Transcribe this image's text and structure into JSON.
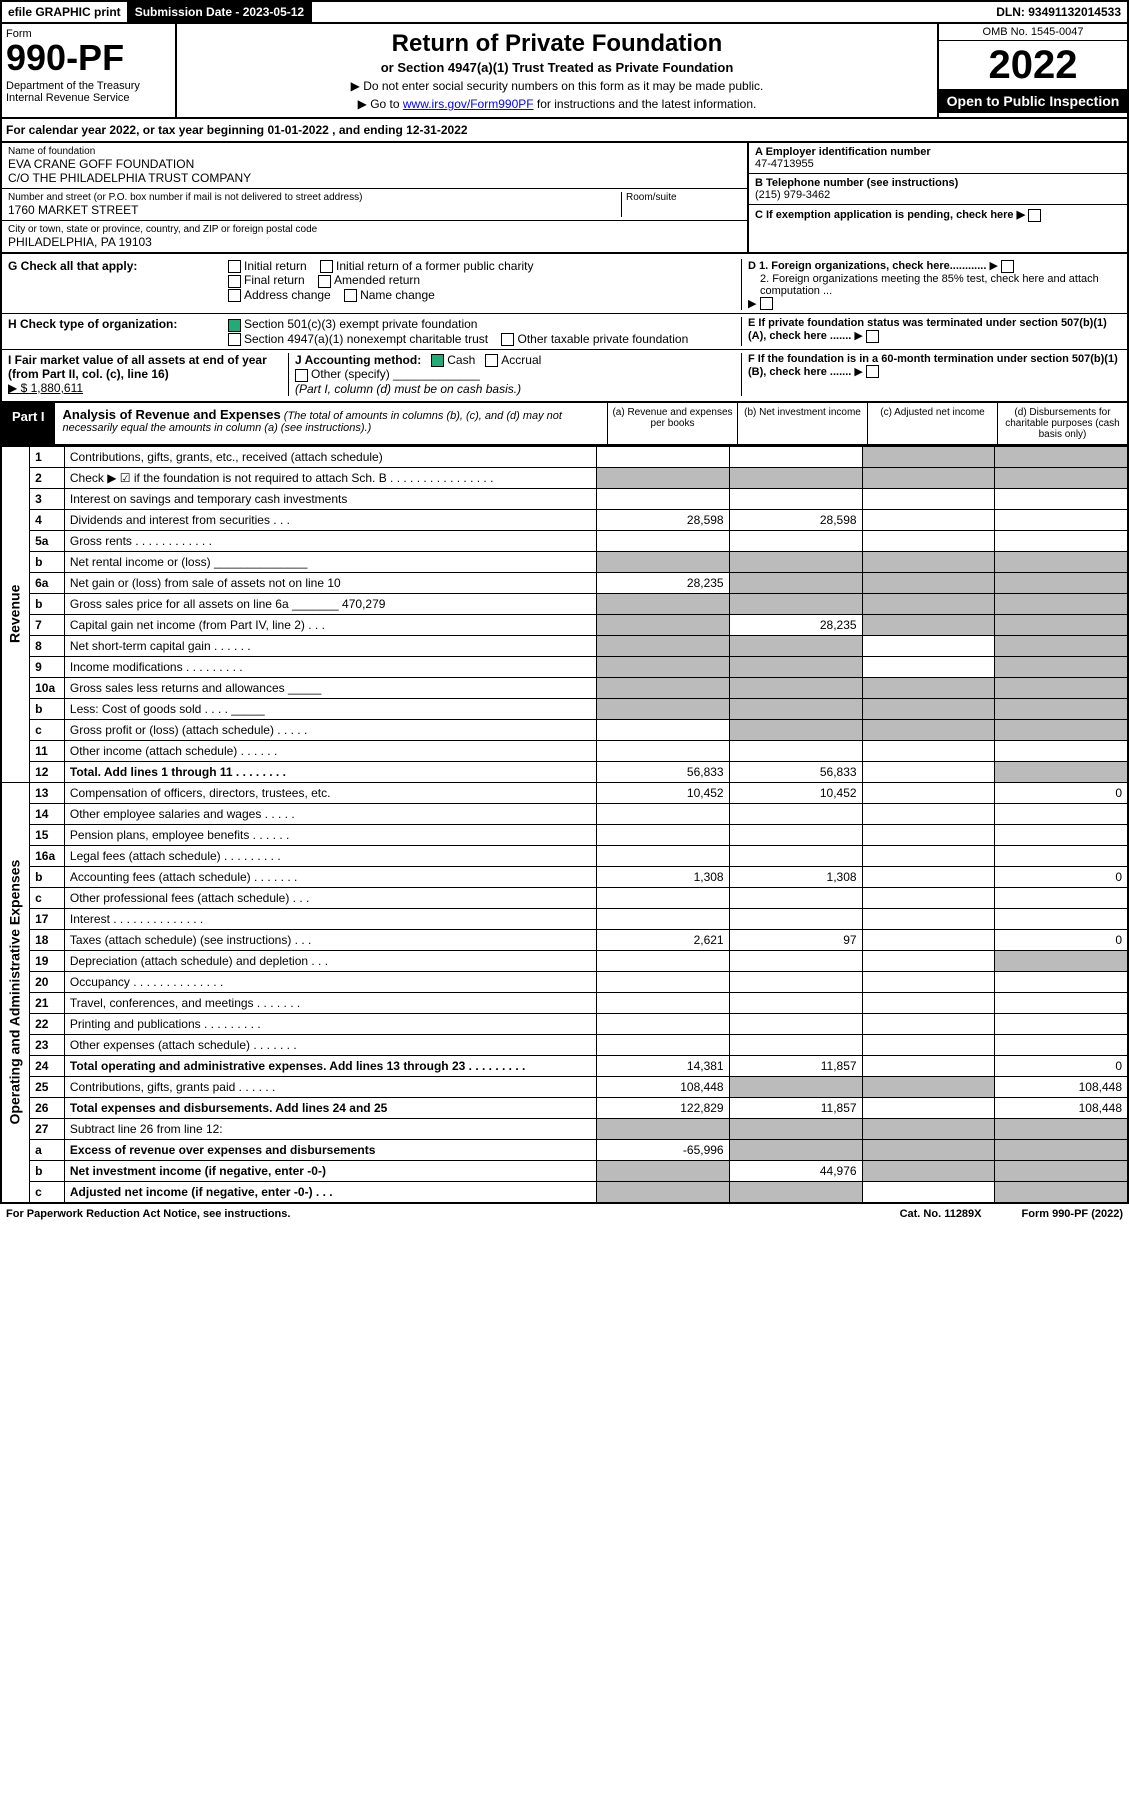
{
  "topbar": {
    "efile": "efile GRAPHIC print",
    "sub_label": "Submission Date - 2023-05-12",
    "dln": "DLN: 93491132014533"
  },
  "header": {
    "form_label": "Form",
    "form_num": "990-PF",
    "dept": "Department of the Treasury\nInternal Revenue Service",
    "title": "Return of Private Foundation",
    "sub": "or Section 4947(a)(1) Trust Treated as Private Foundation",
    "note1": "▶ Do not enter social security numbers on this form as it may be made public.",
    "note2": "▶ Go to www.irs.gov/Form990PF for instructions and the latest information.",
    "omb": "OMB No. 1545-0047",
    "year": "2022",
    "open": "Open to Public Inspection"
  },
  "cal_year": "For calendar year 2022, or tax year beginning 01-01-2022          , and ending 12-31-2022",
  "info": {
    "name_label": "Name of foundation",
    "name": "EVA CRANE GOFF FOUNDATION\nC/O THE PHILADELPHIA TRUST COMPANY",
    "addr_label": "Number and street (or P.O. box number if mail is not delivered to street address)",
    "addr": "1760 MARKET STREET",
    "room_label": "Room/suite",
    "city_label": "City or town, state or province, country, and ZIP or foreign postal code",
    "city": "PHILADELPHIA, PA  19103",
    "a_label": "A Employer identification number",
    "a": "47-4713955",
    "b_label": "B Telephone number (see instructions)",
    "b": "(215) 979-3462",
    "c_label": "C If exemption application is pending, check here",
    "c_arrow": "▶",
    "d1": "D 1. Foreign organizations, check here............",
    "d2": "2. Foreign organizations meeting the 85% test, check here and attach computation ...",
    "e": "E  If private foundation status was terminated under section 507(b)(1)(A), check here .......",
    "f": "F  If the foundation is in a 60-month termination under section 507(b)(1)(B), check here .......",
    "g_label": "G Check all that apply:",
    "g_opts": [
      "Initial return",
      "Initial return of a former public charity",
      "Final return",
      "Amended return",
      "Address change",
      "Name change"
    ],
    "h_label": "H Check type of organization:",
    "h1": "Section 501(c)(3) exempt private foundation",
    "h2": "Section 4947(a)(1) nonexempt charitable trust",
    "h3": "Other taxable private foundation",
    "i_label": "I Fair market value of all assets at end of year (from Part II, col. (c), line 16)",
    "i_val": "▶ $  1,880,611",
    "j_label": "J Accounting method:",
    "j_opts": [
      "Cash",
      "Accrual",
      "Other (specify)"
    ],
    "j_note": "(Part I, column (d) must be on cash basis.)"
  },
  "part1": {
    "label": "Part I",
    "title": "Analysis of Revenue and Expenses",
    "title_note": "(The total of amounts in columns (b), (c), and (d) may not necessarily equal the amounts in column (a) (see instructions).)",
    "cols": [
      "(a)  Revenue and expenses per books",
      "(b)  Net investment income",
      "(c)  Adjusted net income",
      "(d)  Disbursements for charitable purposes (cash basis only)"
    ]
  },
  "sections": [
    {
      "rot": "Revenue",
      "rows": [
        {
          "n": "1",
          "d": "Contributions, gifts, grants, etc., received (attach schedule)",
          "g": [
            0,
            0,
            1,
            1
          ]
        },
        {
          "n": "2",
          "d": "Check ▶ ☑ if the foundation is not required to attach Sch. B   .  .  .  .  .  .  .  .  .  .  .  .  .  .  .  .",
          "g": [
            1,
            1,
            1,
            1
          ]
        },
        {
          "n": "3",
          "d": "Interest on savings and temporary cash investments"
        },
        {
          "n": "4",
          "d": "Dividends and interest from securities   .   .   .",
          "a": "28,598",
          "b": "28,598"
        },
        {
          "n": "5a",
          "d": "Gross rents   .  .  .  .  .  .  .  .  .  .  .  ."
        },
        {
          "n": "b",
          "d": "Net rental income or (loss)  ______________",
          "g": [
            1,
            1,
            1,
            1
          ]
        },
        {
          "n": "6a",
          "d": "Net gain or (loss) from sale of assets not on line 10",
          "a": "28,235",
          "g": [
            0,
            1,
            1,
            1
          ]
        },
        {
          "n": "b",
          "d": "Gross sales price for all assets on line 6a _______ 470,279",
          "g": [
            1,
            1,
            1,
            1
          ]
        },
        {
          "n": "7",
          "d": "Capital gain net income (from Part IV, line 2)   .   .   .",
          "b": "28,235",
          "g": [
            1,
            0,
            1,
            1
          ]
        },
        {
          "n": "8",
          "d": "Net short-term capital gain   .   .   .   .   .   .",
          "g": [
            1,
            1,
            0,
            1
          ]
        },
        {
          "n": "9",
          "d": "Income modifications .  .  .  .  .  .  .  .  .",
          "g": [
            1,
            1,
            0,
            1
          ]
        },
        {
          "n": "10a",
          "d": "Gross sales less returns and allowances  _____",
          "g": [
            1,
            1,
            1,
            1
          ]
        },
        {
          "n": "b",
          "d": "Less: Cost of goods sold   .   .   .   .   _____",
          "g": [
            1,
            1,
            1,
            1
          ]
        },
        {
          "n": "c",
          "d": "Gross profit or (loss) (attach schedule)   .   .   .   .   .",
          "g": [
            0,
            1,
            1,
            1
          ]
        },
        {
          "n": "11",
          "d": "Other income (attach schedule)   .   .   .   .   .   ."
        },
        {
          "n": "12",
          "d": "Total. Add lines 1 through 11   .   .   .   .   .   .   .   .",
          "a": "56,833",
          "b": "56,833",
          "bold": true,
          "g": [
            0,
            0,
            0,
            1
          ]
        }
      ]
    },
    {
      "rot": "Operating and Administrative Expenses",
      "rows": [
        {
          "n": "13",
          "d": "Compensation of officers, directors, trustees, etc.",
          "a": "10,452",
          "b": "10,452",
          "dd": "0"
        },
        {
          "n": "14",
          "d": "Other employee salaries and wages   .   .   .   .   ."
        },
        {
          "n": "15",
          "d": "Pension plans, employee benefits  .   .   .   .   .   ."
        },
        {
          "n": "16a",
          "d": "Legal fees (attach schedule) .  .  .  .  .  .  .  .  ."
        },
        {
          "n": "b",
          "d": "Accounting fees (attach schedule) .  .  .  .  .  .  .",
          "a": "1,308",
          "b": "1,308",
          "dd": "0"
        },
        {
          "n": "c",
          "d": "Other professional fees (attach schedule)   .   .   ."
        },
        {
          "n": "17",
          "d": "Interest  .  .  .  .  .  .  .  .  .  .  .  .  .  ."
        },
        {
          "n": "18",
          "d": "Taxes (attach schedule) (see instructions)    .   .   .",
          "a": "2,621",
          "b": "97",
          "dd": "0"
        },
        {
          "n": "19",
          "d": "Depreciation (attach schedule) and depletion   .   .   .",
          "g": [
            0,
            0,
            0,
            1
          ]
        },
        {
          "n": "20",
          "d": "Occupancy .  .  .  .  .  .  .  .  .  .  .  .  .  ."
        },
        {
          "n": "21",
          "d": "Travel, conferences, and meetings .  .  .  .  .  .  ."
        },
        {
          "n": "22",
          "d": "Printing and publications .  .  .  .  .  .  .  .  ."
        },
        {
          "n": "23",
          "d": "Other expenses (attach schedule) .  .  .  .  .  .  ."
        },
        {
          "n": "24",
          "d": "Total operating and administrative expenses. Add lines 13 through 23   .   .   .   .   .   .   .   .   .",
          "a": "14,381",
          "b": "11,857",
          "dd": "0",
          "bold": true
        },
        {
          "n": "25",
          "d": "Contributions, gifts, grants paid    .   .   .   .   .   .",
          "a": "108,448",
          "dd": "108,448",
          "g": [
            0,
            1,
            1,
            0
          ]
        },
        {
          "n": "26",
          "d": "Total expenses and disbursements. Add lines 24 and 25",
          "a": "122,829",
          "b": "11,857",
          "dd": "108,448",
          "bold": true
        },
        {
          "n": "27",
          "d": "Subtract line 26 from line 12:",
          "g": [
            1,
            1,
            1,
            1
          ]
        },
        {
          "n": "a",
          "d": "Excess of revenue over expenses and disbursements",
          "a": "-65,996",
          "bold": true,
          "g": [
            0,
            1,
            1,
            1
          ]
        },
        {
          "n": "b",
          "d": "Net investment income (if negative, enter -0-)",
          "b": "44,976",
          "bold": true,
          "g": [
            1,
            0,
            1,
            1
          ]
        },
        {
          "n": "c",
          "d": "Adjusted net income (if negative, enter -0-)   .   .   .",
          "bold": true,
          "g": [
            1,
            1,
            0,
            1
          ]
        }
      ]
    }
  ],
  "footer": {
    "left": "For Paperwork Reduction Act Notice, see instructions.",
    "mid": "Cat. No. 11289X",
    "right": "Form 990-PF (2022)"
  }
}
